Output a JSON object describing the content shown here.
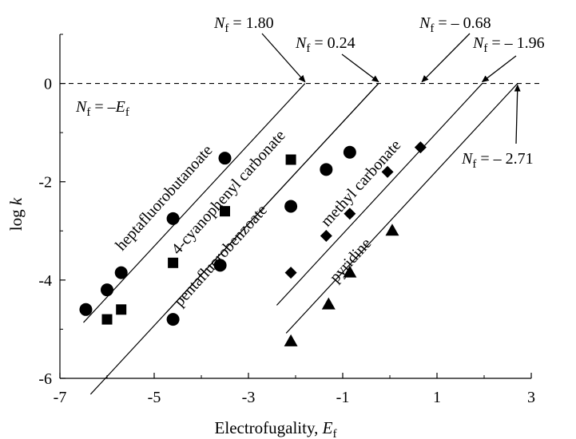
{
  "chart_data": {
    "type": "scatter",
    "xlabel": "Electrofugality, E_f",
    "xlabel_main": "Electrofugality, ",
    "xlabel_var": "E",
    "xlabel_sub": "f",
    "ylabel": "log k",
    "ylabel_main": "log ",
    "ylabel_var": "k",
    "xlim": [
      -7,
      3
    ],
    "ylim": [
      -6,
      1
    ],
    "xticks": [
      -7,
      -5,
      -3,
      -1,
      1,
      3
    ],
    "xtick_labels": [
      "-7",
      "-5",
      "-3",
      "-1",
      "1",
      "3"
    ],
    "yticks": [
      -6,
      -4,
      -2,
      0
    ],
    "ytick_labels": [
      "-6",
      "-4",
      "-2",
      "0"
    ],
    "reference_line": {
      "y": 0,
      "style": "dashed",
      "label": "N_f = –E_f",
      "label_parts": {
        "N": "N",
        "sub": "f",
        "eq": " = –",
        "E": "E",
        "esub": "f"
      }
    },
    "series": [
      {
        "name": "heptafluorobutanoate",
        "marker": "circle",
        "points": [
          [
            -6.45,
            -4.6
          ],
          [
            -6.0,
            -4.2
          ],
          [
            -5.7,
            -3.85
          ],
          [
            -4.6,
            -2.75
          ],
          [
            -3.5,
            -1.52
          ]
        ],
        "fit": {
          "x0": -6.5,
          "x1": -1.8
        },
        "nf": 1.8
      },
      {
        "name": "4-cyanophenyl carbonate",
        "marker": "square",
        "points": [
          [
            -6.0,
            -4.8
          ],
          [
            -5.7,
            -4.6
          ],
          [
            -4.6,
            -3.65
          ],
          [
            -3.5,
            -2.6
          ],
          [
            -2.1,
            -1.55
          ]
        ],
        "fit": {
          "x0": -6.35,
          "x1": -0.24
        },
        "nf": 0.24
      },
      {
        "name": "pentafluorobenzoate",
        "marker": "circle",
        "points": [
          [
            -4.6,
            -4.8
          ],
          [
            -3.6,
            -3.7
          ],
          [
            -2.1,
            -2.5
          ],
          [
            -1.35,
            -1.75
          ],
          [
            -0.85,
            -1.4
          ]
        ],
        "fit": {
          "x0": -4.75,
          "x1": -0.24
        },
        "nf": 0.24
      },
      {
        "name": "methyl carbonate",
        "marker": "diamond",
        "points": [
          [
            -2.1,
            -3.85
          ],
          [
            -1.35,
            -3.1
          ],
          [
            -0.85,
            -2.65
          ],
          [
            -0.05,
            -1.8
          ],
          [
            0.65,
            -1.3
          ]
        ],
        "fit": {
          "x0": -2.4,
          "x1": 1.96
        },
        "nf": -1.96
      },
      {
        "name": "pyridine",
        "marker": "triangle",
        "points": [
          [
            -2.1,
            -5.25
          ],
          [
            -1.3,
            -4.5
          ],
          [
            -0.85,
            -3.85
          ],
          [
            0.05,
            -3.0
          ]
        ],
        "fit": {
          "x0": -2.2,
          "x1": 2.71
        },
        "nf": -2.71
      }
    ],
    "annotations": [
      {
        "id": "nf180",
        "value": "= 1.80",
        "target_x": -1.8
      },
      {
        "id": "nf024",
        "value": "= 0.24",
        "target_x": -0.24
      },
      {
        "id": "nfm068",
        "value": "= – 0.68",
        "target_x": 0.68
      },
      {
        "id": "nfm196",
        "value": "= – 1.96",
        "target_x": 1.96
      },
      {
        "id": "nfm271",
        "value": "= – 2.71",
        "target_x": 2.71
      }
    ],
    "annotation_var": "N",
    "annotation_sub": "f",
    "grid": false,
    "legend": "none"
  }
}
